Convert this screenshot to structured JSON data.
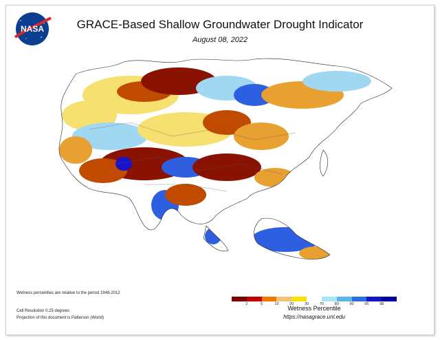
{
  "header": {
    "title": "GRACE-Based Shallow Groundwater Drought Indicator",
    "date": "August 08, 2022",
    "logo_text": "NASA"
  },
  "notes": {
    "period": "Wetness percentiles are relative to the period 1948-2012",
    "resolution": "Cell Resolution 0.25 degrees",
    "projection": "Projection of this document is Patterson (World)"
  },
  "legend": {
    "title": "Wetness Percentile",
    "ticks": [
      "2",
      "5",
      "10",
      "20",
      "30",
      "70",
      "80",
      "90",
      "95",
      "98"
    ],
    "colors": [
      "#7a0000",
      "#c40000",
      "#f07800",
      "#f3c27a",
      "#f6e400",
      "#ffffff",
      "#a8e4f4",
      "#5ab6e8",
      "#2a6fe0",
      "#1414c8",
      "#0000a0"
    ]
  },
  "footer": {
    "url": "https://nasagrace.unl.edu"
  },
  "colors": {
    "very_dry": "#8a1200",
    "dry": "#c04a00",
    "moderately_dry": "#e8a030",
    "slightly_dry": "#f5e070",
    "normal": "#ffffff",
    "wet": "#9fd8f0",
    "very_wet": "#2d5fe0",
    "extreme_wet": "#1a14c8"
  }
}
